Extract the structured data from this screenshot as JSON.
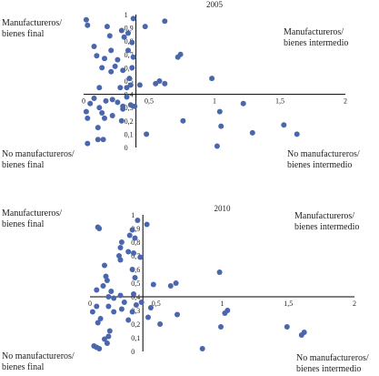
{
  "chart_data": [
    {
      "type": "scatter",
      "title": "2005",
      "xlim": [
        0,
        2
      ],
      "ylim": [
        0,
        1
      ],
      "axis_crossing": {
        "x": 0.4,
        "y": 0.4
      },
      "x_ticks": [
        "0",
        "0,5",
        "1",
        "1,5",
        "2"
      ],
      "y_ticks": [
        "0",
        "0,1",
        "0,2",
        "0,3",
        "0,4",
        "0,5",
        "0,6",
        "0,7",
        "0,8",
        "0,9",
        "1"
      ],
      "marker_color": "#4a66ad",
      "grid": false,
      "quadrant_labels": {
        "top_left": [
          "Manufactureros/",
          "bienes final"
        ],
        "top_right": [
          "Manufactureros/",
          "bienes intermedio"
        ],
        "bottom_left": [
          "No manufactureros/",
          "bienes final"
        ],
        "bottom_right": [
          "No manufactureros/",
          "bienes intermedio"
        ]
      },
      "points": [
        [
          0.02,
          0.96
        ],
        [
          0.03,
          0.92
        ],
        [
          0.38,
          0.97
        ],
        [
          0.47,
          0.91
        ],
        [
          0.62,
          0.95
        ],
        [
          0.18,
          0.91
        ],
        [
          0.2,
          0.84
        ],
        [
          0.29,
          0.88
        ],
        [
          0.31,
          0.83
        ],
        [
          0.34,
          0.86
        ],
        [
          0.37,
          0.79
        ],
        [
          0.08,
          0.76
        ],
        [
          0.21,
          0.73
        ],
        [
          0.34,
          0.73
        ],
        [
          0.1,
          0.69
        ],
        [
          0.16,
          0.67
        ],
        [
          0.38,
          0.68
        ],
        [
          0.26,
          0.66
        ],
        [
          0.74,
          0.7
        ],
        [
          0.72,
          0.68
        ],
        [
          0.24,
          0.61
        ],
        [
          0.14,
          0.6
        ],
        [
          0.21,
          0.57
        ],
        [
          0.3,
          0.58
        ],
        [
          0.37,
          0.6
        ],
        [
          0.98,
          0.52
        ],
        [
          0.55,
          0.48
        ],
        [
          0.58,
          0.5
        ],
        [
          0.62,
          0.48
        ],
        [
          0.12,
          0.45
        ],
        [
          0.28,
          0.45
        ],
        [
          0.36,
          0.47
        ],
        [
          0.43,
          0.47
        ],
        [
          0.08,
          0.37
        ],
        [
          0.17,
          0.35
        ],
        [
          0.22,
          0.36
        ],
        [
          0.33,
          0.38
        ],
        [
          0.05,
          0.33
        ],
        [
          0.12,
          0.3
        ],
        [
          0.14,
          0.26
        ],
        [
          0.26,
          0.34
        ],
        [
          0.3,
          0.31
        ],
        [
          0.36,
          0.32
        ],
        [
          1.22,
          0.33
        ],
        [
          1.04,
          0.27
        ],
        [
          0.02,
          0.27
        ],
        [
          0.16,
          0.22
        ],
        [
          0.22,
          0.24
        ],
        [
          0.76,
          0.2
        ],
        [
          0.29,
          0.2
        ],
        [
          0.03,
          0.22
        ],
        [
          1.53,
          0.17
        ],
        [
          0.11,
          0.15
        ],
        [
          1.05,
          0.16
        ],
        [
          0.48,
          0.1
        ],
        [
          0.39,
          0.31
        ],
        [
          1.29,
          0.11
        ],
        [
          1.63,
          0.1
        ],
        [
          0.11,
          0.06
        ],
        [
          0.03,
          0.03
        ],
        [
          1.02,
          0.01
        ],
        [
          0.15,
          0.06
        ],
        [
          0.35,
          0.52
        ],
        [
          0.33,
          0.45
        ],
        [
          0.3,
          0.29
        ]
      ]
    },
    {
      "type": "scatter",
      "title": "2010",
      "xlim": [
        0,
        2
      ],
      "ylim": [
        0,
        1
      ],
      "axis_crossing": {
        "x": 0.4,
        "y": 0.4
      },
      "x_ticks": [
        "0",
        "0,5",
        "1",
        "1,5",
        "2"
      ],
      "y_ticks": [
        "0",
        "0,1",
        "0,2",
        "0,3",
        "0,4",
        "0,5",
        "0,6",
        "0,7",
        "0,8",
        "0,9",
        "1"
      ],
      "marker_color": "#4a66ad",
      "grid": false,
      "quadrant_labels": {
        "top_left": [
          "Manufactureros/",
          "bienes final"
        ],
        "top_right": [
          "Manufactureros/",
          "bienes intermedio"
        ],
        "bottom_left": [
          "No manufactureros/",
          "bienes final"
        ],
        "bottom_right": [
          "No manufactureros/",
          "bienes intermedio"
        ]
      },
      "points": [
        [
          0.36,
          0.96
        ],
        [
          0.43,
          0.93
        ],
        [
          0.32,
          0.89
        ],
        [
          0.06,
          0.91
        ],
        [
          0.07,
          0.9
        ],
        [
          0.3,
          0.85
        ],
        [
          0.34,
          0.83
        ],
        [
          0.24,
          0.8
        ],
        [
          0.23,
          0.76
        ],
        [
          0.29,
          0.73
        ],
        [
          0.33,
          0.72
        ],
        [
          0.22,
          0.7
        ],
        [
          0.23,
          0.67
        ],
        [
          0.38,
          0.69
        ],
        [
          0.11,
          0.63
        ],
        [
          0.32,
          0.6
        ],
        [
          0.34,
          0.54
        ],
        [
          0.12,
          0.55
        ],
        [
          0.13,
          0.52
        ],
        [
          0.1,
          0.48
        ],
        [
          0.05,
          0.45
        ],
        [
          0.98,
          0.58
        ],
        [
          0.48,
          0.49
        ],
        [
          0.61,
          0.48
        ],
        [
          0.65,
          0.5
        ],
        [
          0.14,
          0.4
        ],
        [
          0.18,
          0.39
        ],
        [
          0.23,
          0.41
        ],
        [
          0.16,
          0.44
        ],
        [
          0.33,
          0.42
        ],
        [
          0.26,
          0.36
        ],
        [
          0.35,
          0.34
        ],
        [
          0.39,
          0.36
        ],
        [
          0.46,
          0.32
        ],
        [
          0.05,
          0.33
        ],
        [
          0.14,
          0.33
        ],
        [
          0.24,
          0.31
        ],
        [
          0.32,
          0.29
        ],
        [
          0.66,
          0.27
        ],
        [
          1.04,
          0.3
        ],
        [
          1.02,
          0.28
        ],
        [
          0.02,
          0.29
        ],
        [
          0.18,
          0.29
        ],
        [
          0.29,
          0.23
        ],
        [
          0.44,
          0.25
        ],
        [
          0.08,
          0.24
        ],
        [
          0.53,
          0.2
        ],
        [
          0.99,
          0.18
        ],
        [
          1.49,
          0.18
        ],
        [
          0.06,
          0.21
        ],
        [
          0.15,
          0.15
        ],
        [
          1.62,
          0.14
        ],
        [
          1.6,
          0.12
        ],
        [
          0.14,
          0.11
        ],
        [
          0.11,
          0.09
        ],
        [
          0.05,
          0.03
        ],
        [
          0.07,
          0.02
        ],
        [
          0.13,
          0.06
        ],
        [
          0.85,
          0.02
        ],
        [
          0.03,
          0.04
        ]
      ]
    }
  ]
}
